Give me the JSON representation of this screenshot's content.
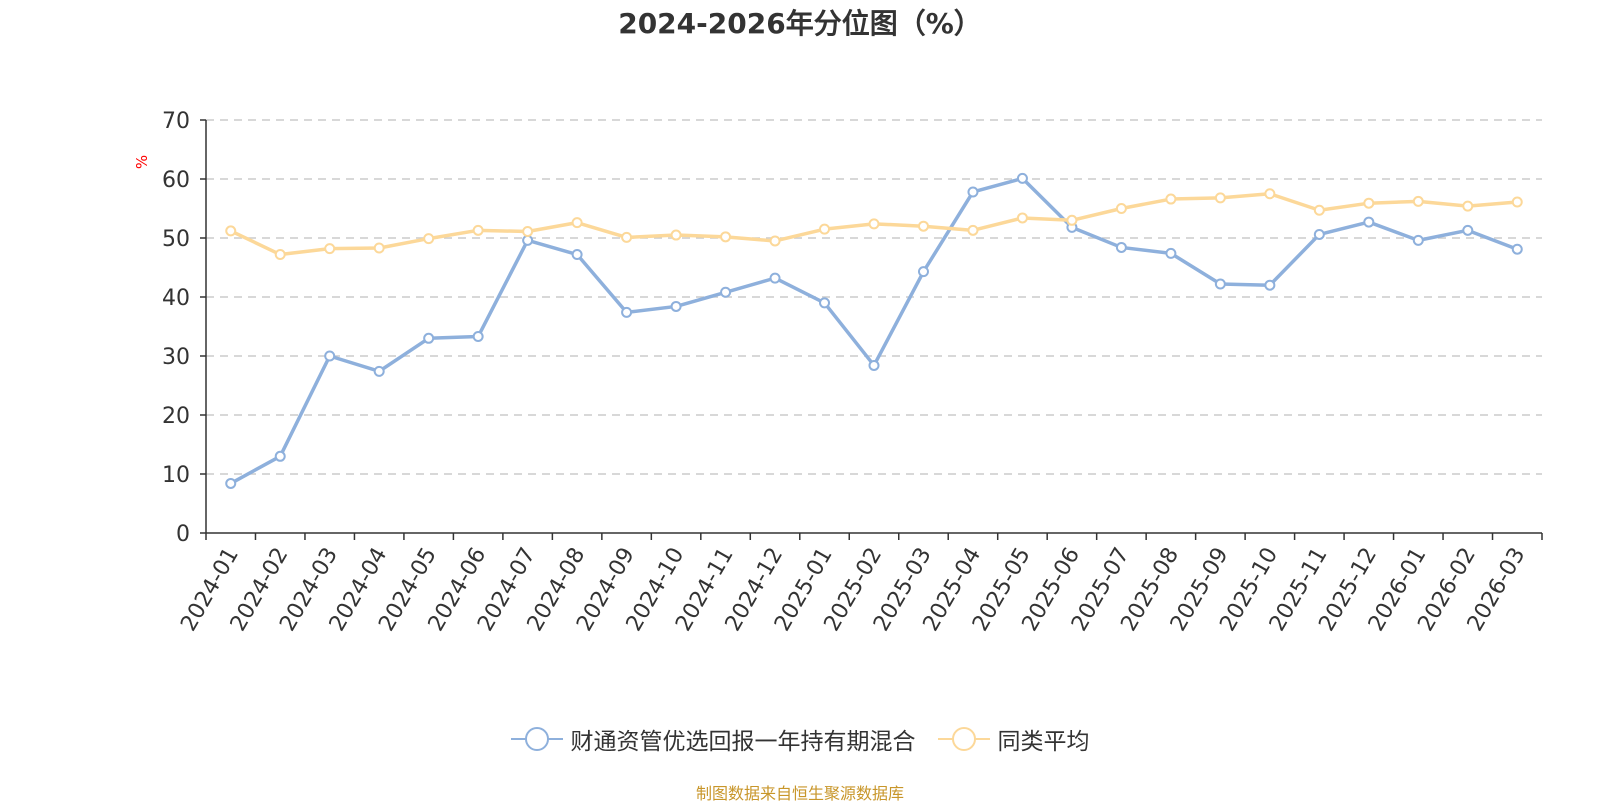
{
  "chart_data": {
    "type": "line",
    "title": "2024-2026年分位图（%）",
    "ylabel": "%",
    "xlabel": "",
    "ylim": [
      0,
      70
    ],
    "yticks": [
      0,
      10,
      20,
      30,
      40,
      50,
      60,
      70
    ],
    "grid": true,
    "legend_position": "bottom",
    "categories": [
      "2024-01",
      "2024-02",
      "2024-03",
      "2024-04",
      "2024-05",
      "2024-06",
      "2024-07",
      "2024-08",
      "2024-09",
      "2024-10",
      "2024-11",
      "2024-12",
      "2025-01",
      "2025-02",
      "2025-03",
      "2025-04",
      "2025-05",
      "2025-06",
      "2025-07",
      "2025-08",
      "2025-09",
      "2025-10",
      "2025-11",
      "2025-12",
      "2026-01",
      "2026-02",
      "2026-03"
    ],
    "series": [
      {
        "name": "财通资管优选回报一年持有期混合",
        "color": "#8eb0dc",
        "values": [
          8.4,
          13.0,
          30.0,
          27.4,
          33.0,
          33.3,
          49.6,
          47.2,
          37.4,
          38.4,
          40.8,
          43.2,
          39.0,
          28.4,
          44.3,
          57.8,
          60.1,
          51.8,
          48.4,
          47.4,
          42.2,
          42.0,
          50.6,
          52.7,
          49.6,
          51.3,
          48.1
        ]
      },
      {
        "name": "同类平均",
        "color": "#fcd899",
        "values": [
          51.2,
          47.2,
          48.2,
          48.3,
          49.9,
          51.3,
          51.1,
          52.6,
          50.1,
          50.5,
          50.2,
          49.5,
          51.5,
          52.4,
          52.0,
          51.3,
          53.4,
          53.0,
          55.0,
          56.6,
          56.8,
          57.5,
          54.7,
          55.9,
          56.2,
          55.4,
          56.1
        ]
      }
    ]
  },
  "source_text": "制图数据来自恒生聚源数据库",
  "colors": {
    "axis": "#333333",
    "grid": "#cccccc",
    "ylabel": "#ff0000",
    "source": "#c8962a"
  }
}
